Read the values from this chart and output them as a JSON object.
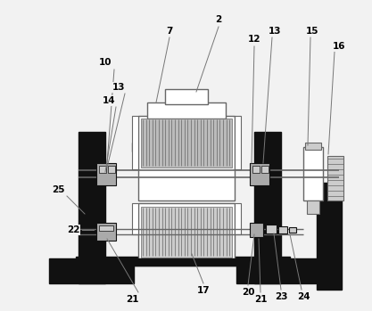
{
  "bg_color": "#f2f2f2",
  "line_color": "#666666",
  "dark_color": "#111111",
  "gray_color": "#999999",
  "light_gray": "#cccccc",
  "med_gray": "#aaaaaa",
  "white_color": "#ffffff",
  "hatch_gray": "#bbbbbb"
}
